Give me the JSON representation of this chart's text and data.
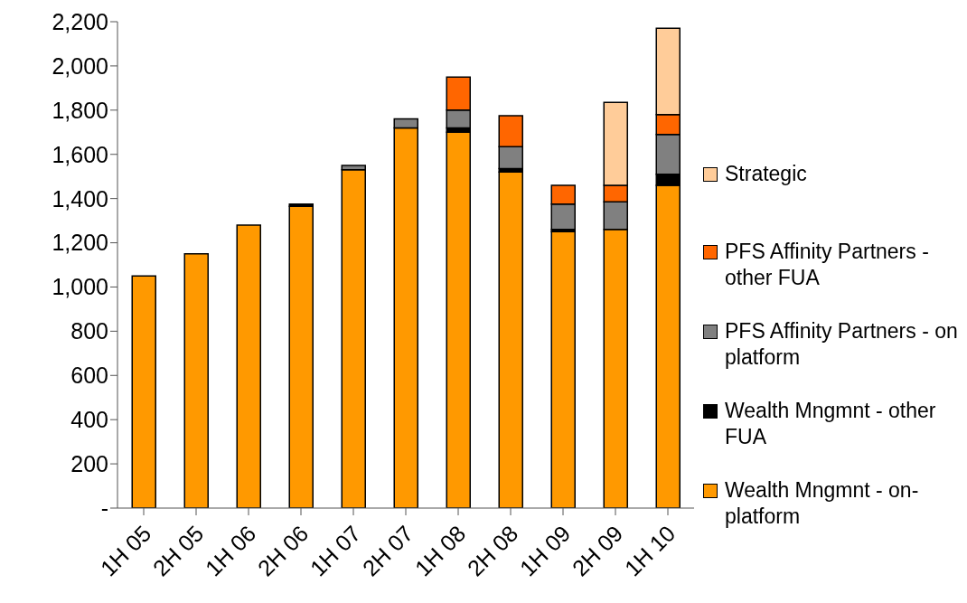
{
  "chart_data": {
    "type": "bar",
    "stacked": true,
    "categories": [
      "1H 05",
      "2H 05",
      "1H 06",
      "2H 06",
      "1H 07",
      "2H 07",
      "1H 08",
      "2H 08",
      "1H 09",
      "2H 09",
      "1H 10"
    ],
    "series": [
      {
        "name": "Wealth Mngmnt - on-platform",
        "color": "#ff9900",
        "values": [
          1050,
          1150,
          1280,
          1365,
          1530,
          1720,
          1700,
          1520,
          1250,
          1260,
          1460
        ]
      },
      {
        "name": "Wealth Mngmnt - other FUA",
        "color": "#000000",
        "values": [
          0,
          0,
          0,
          10,
          0,
          0,
          20,
          15,
          10,
          0,
          50
        ]
      },
      {
        "name": "PFS Affinity Partners - on platform",
        "color": "#808080",
        "values": [
          0,
          0,
          0,
          0,
          20,
          40,
          80,
          100,
          115,
          125,
          180
        ]
      },
      {
        "name": "PFS Affinity Partners - other FUA",
        "color": "#ff6600",
        "values": [
          0,
          0,
          0,
          0,
          0,
          0,
          150,
          140,
          85,
          75,
          90
        ]
      },
      {
        "name": "Strategic",
        "color": "#ffcc99",
        "values": [
          0,
          0,
          0,
          0,
          0,
          0,
          0,
          0,
          0,
          375,
          390
        ]
      }
    ],
    "ylim": [
      0,
      2200
    ],
    "yticks": [
      {
        "value": 0,
        "label": "-"
      },
      {
        "value": 200,
        "label": "200"
      },
      {
        "value": 400,
        "label": "400"
      },
      {
        "value": 600,
        "label": "600"
      },
      {
        "value": 800,
        "label": "800"
      },
      {
        "value": 1000,
        "label": "1,000"
      },
      {
        "value": 1200,
        "label": "1,200"
      },
      {
        "value": 1400,
        "label": "1,400"
      },
      {
        "value": 1600,
        "label": "1,600"
      },
      {
        "value": 1800,
        "label": "1,800"
      },
      {
        "value": 2000,
        "label": "2,000"
      },
      {
        "value": 2200,
        "label": "2,200"
      }
    ],
    "grid": false,
    "legend": "right"
  }
}
